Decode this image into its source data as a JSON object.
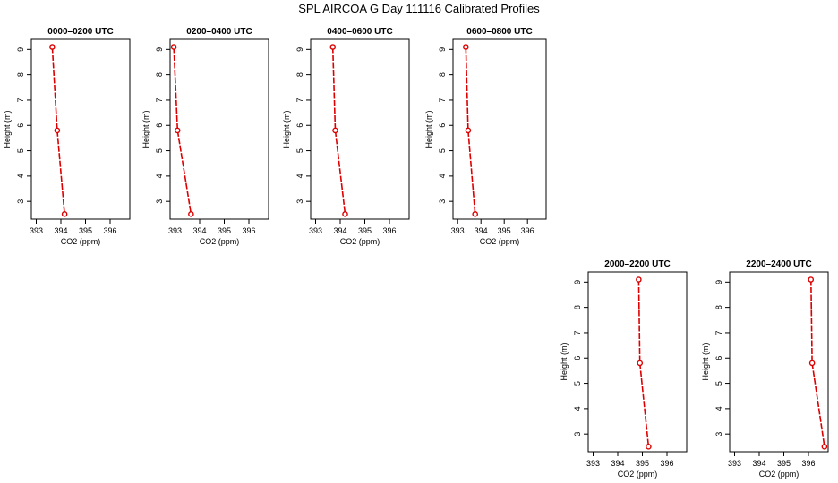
{
  "figure_title": "SPL AIRCOA G  Day 111116  Calibrated Profiles",
  "chart_data": [
    {
      "type": "line",
      "title": "0000–0200 UTC",
      "xlabel": "CO2 (ppm)",
      "ylabel": "Height (m)",
      "xlim": [
        392.8,
        396.8
      ],
      "ylim": [
        2.3,
        9.4
      ],
      "xticks": [
        "393",
        "394",
        "395",
        "396"
      ],
      "yticks": [
        "3",
        "4",
        "5",
        "6",
        "7",
        "8",
        "9"
      ],
      "x": [
        393.65,
        393.85,
        394.15
      ],
      "y": [
        9.1,
        5.8,
        2.5
      ],
      "color": "#dd0000"
    },
    {
      "type": "line",
      "title": "0200–0400 UTC",
      "xlabel": "CO2 (ppm)",
      "ylabel": "Height (m)",
      "xlim": [
        392.8,
        396.8
      ],
      "ylim": [
        2.3,
        9.4
      ],
      "xticks": [
        "393",
        "394",
        "395",
        "396"
      ],
      "yticks": [
        "3",
        "4",
        "5",
        "6",
        "7",
        "8",
        "9"
      ],
      "x": [
        392.95,
        393.1,
        393.65
      ],
      "y": [
        9.1,
        5.8,
        2.5
      ],
      "color": "#dd0000"
    },
    {
      "type": "line",
      "title": "0400–0600 UTC",
      "xlabel": "CO2 (ppm)",
      "ylabel": "Height (m)",
      "xlim": [
        392.8,
        396.8
      ],
      "ylim": [
        2.3,
        9.4
      ],
      "xticks": [
        "393",
        "394",
        "395",
        "396"
      ],
      "yticks": [
        "3",
        "4",
        "5",
        "6",
        "7",
        "8",
        "9"
      ],
      "x": [
        393.7,
        393.8,
        394.2
      ],
      "y": [
        9.1,
        5.8,
        2.5
      ],
      "color": "#dd0000"
    },
    {
      "type": "line",
      "title": "0600–0800 UTC",
      "xlabel": "CO2 (ppm)",
      "ylabel": "Height (m)",
      "xlim": [
        392.8,
        396.8
      ],
      "ylim": [
        2.3,
        9.4
      ],
      "xticks": [
        "393",
        "394",
        "395",
        "396"
      ],
      "yticks": [
        "3",
        "4",
        "5",
        "6",
        "7",
        "8",
        "9"
      ],
      "x": [
        393.35,
        393.45,
        393.75
      ],
      "y": [
        9.1,
        5.8,
        2.5
      ],
      "color": "#dd0000"
    },
    {
      "type": "line",
      "title": "2000–2200 UTC",
      "xlabel": "CO2 (ppm)",
      "ylabel": "Height (m)",
      "xlim": [
        392.8,
        396.8
      ],
      "ylim": [
        2.3,
        9.4
      ],
      "xticks": [
        "393",
        "394",
        "395",
        "396"
      ],
      "yticks": [
        "3",
        "4",
        "5",
        "6",
        "7",
        "8",
        "9"
      ],
      "x": [
        394.85,
        394.9,
        395.25
      ],
      "y": [
        9.1,
        5.8,
        2.5
      ],
      "color": "#dd0000"
    },
    {
      "type": "line",
      "title": "2200–2400 UTC",
      "xlabel": "CO2 (ppm)",
      "ylabel": "Height (m)",
      "xlim": [
        392.8,
        396.8
      ],
      "ylim": [
        2.3,
        9.4
      ],
      "xticks": [
        "393",
        "394",
        "395",
        "396"
      ],
      "yticks": [
        "3",
        "4",
        "5",
        "6",
        "7",
        "8",
        "9"
      ],
      "x": [
        396.1,
        396.15,
        396.65
      ],
      "y": [
        9.1,
        5.8,
        2.5
      ],
      "color": "#dd0000"
    }
  ]
}
